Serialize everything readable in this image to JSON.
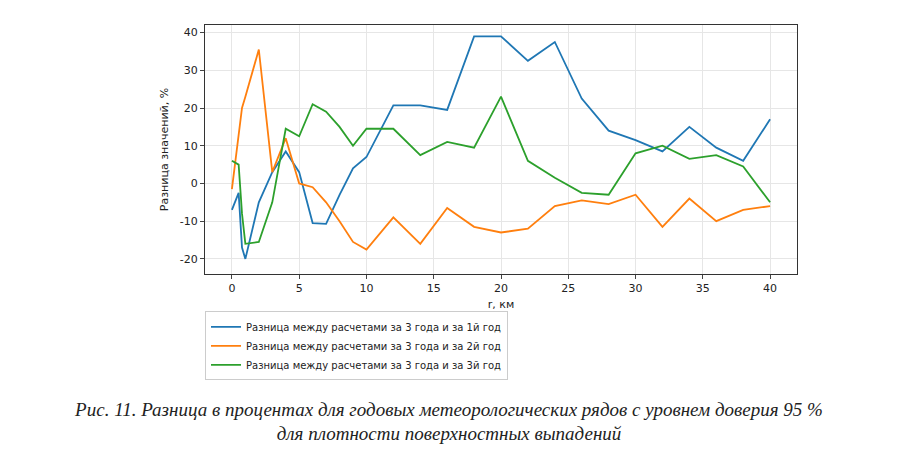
{
  "chart_data": {
    "type": "line",
    "caption": "Рис. 11. Разница в процентах для годовых метеорологических рядов с уровнем доверия 95 % для плотности поверхностных выпадений",
    "xlabel": "r, км",
    "ylabel": "Разница значений, %",
    "x": [
      0,
      0.5,
      0.75,
      1,
      2,
      3,
      4,
      5,
      6,
      7,
      8,
      9,
      10,
      12,
      14,
      16,
      18,
      20,
      22,
      24,
      26,
      28,
      30,
      32,
      34,
      36,
      38,
      40
    ],
    "series": [
      {
        "name": "Разница между расчетами за 3 года и за 1й год",
        "color": "#1f77b4",
        "values": [
          -7,
          -2.5,
          -17,
          -20,
          -5,
          3,
          8.5,
          3,
          -10.5,
          -10.7,
          -3,
          4,
          7,
          20.7,
          20.7,
          19.5,
          39,
          39,
          32.5,
          37.5,
          22.5,
          14,
          11.5,
          8.5,
          15,
          9.5,
          6,
          17
        ]
      },
      {
        "name": "Разница между расчетами за 3 года и за 2й год",
        "color": "#ff7f0e",
        "values": [
          -1.5,
          12,
          20,
          23,
          35.5,
          3,
          12,
          0,
          -1,
          -5,
          -10,
          -15.5,
          -17.5,
          -9,
          -16,
          -6.5,
          -11.5,
          -13,
          -12,
          -6,
          -4.5,
          -5.5,
          -3,
          -11.5,
          -4,
          -10,
          -7,
          -6
        ]
      },
      {
        "name": "Разница между расчетами за 3 года и за 3й год",
        "color": "#2ca02c",
        "values": [
          6,
          5,
          -8,
          -16,
          -15.5,
          -5,
          14.5,
          12.5,
          21,
          19,
          15,
          10,
          14.5,
          14.5,
          7.5,
          11,
          9.5,
          23,
          6,
          1.5,
          -2.5,
          -3,
          8,
          10,
          6.5,
          7.5,
          4.5,
          -5
        ]
      }
    ],
    "xlim": [
      -2,
      42
    ],
    "ylim": [
      -24,
      42
    ],
    "xticks": [
      0,
      5,
      10,
      15,
      20,
      25,
      30,
      35,
      40
    ],
    "yticks": [
      -20,
      -10,
      0,
      10,
      20,
      30,
      40
    ],
    "grid": true,
    "legend": "below"
  }
}
